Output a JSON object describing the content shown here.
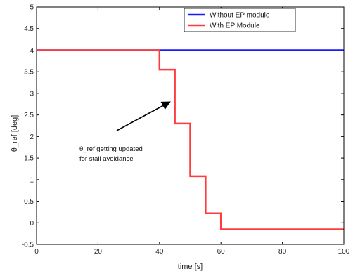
{
  "chart_data": {
    "type": "line",
    "title": "",
    "xlabel": "time [s]",
    "ylabel": "θ_ref [deg]",
    "xlim": [
      0,
      100
    ],
    "ylim": [
      -0.5,
      5
    ],
    "xticks": [
      0,
      20,
      40,
      60,
      80,
      100
    ],
    "yticks": [
      -0.5,
      0,
      0.5,
      1,
      1.5,
      2,
      2.5,
      3,
      3.5,
      4,
      4.5,
      5
    ],
    "grid": false,
    "legend_position": "top-right",
    "series": [
      {
        "name": "Without EP module",
        "color": "#1a1aff",
        "step": true,
        "x": [
          0,
          100
        ],
        "y": [
          4,
          4
        ]
      },
      {
        "name": "With EP Module",
        "color": "#ff3b3b",
        "step": true,
        "x": [
          0,
          40,
          45,
          50,
          55,
          60,
          100
        ],
        "y": [
          4,
          3.55,
          2.3,
          1.08,
          0.22,
          -0.15,
          -0.15
        ]
      }
    ],
    "annotation": {
      "lines": [
        "θ_ref getting updated",
        "for stall avoidance"
      ]
    }
  }
}
